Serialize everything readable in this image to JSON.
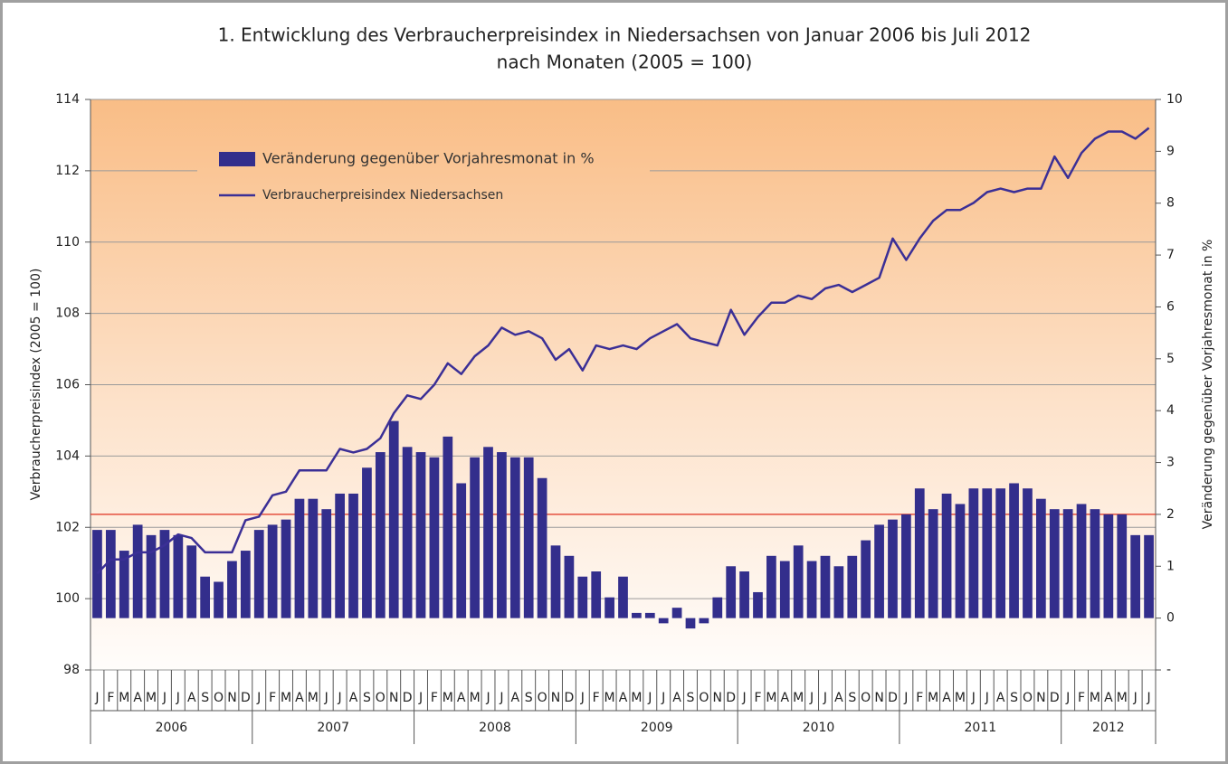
{
  "chart_data": {
    "type": "bar_line",
    "title": "1. Entwicklung des Verbraucherpreisindex in Niedersachsen von Januar 2006 bis Juli 2012",
    "subtitle": "nach Monaten (2005 = 100)",
    "y_label": "Verbraucherpreisindex (2005 = 100)",
    "y2_label": "Veränderung gegenüber Vorjahresmonat in %",
    "categories": [
      "J",
      "F",
      "M",
      "A",
      "M",
      "J",
      "J",
      "A",
      "S",
      "O",
      "N",
      "D",
      "J",
      "F",
      "M",
      "A",
      "M",
      "J",
      "J",
      "A",
      "S",
      "O",
      "N",
      "D",
      "J",
      "F",
      "M",
      "A",
      "M",
      "J",
      "J",
      "A",
      "S",
      "O",
      "N",
      "D",
      "J",
      "F",
      "M",
      "A",
      "M",
      "J",
      "J",
      "A",
      "S",
      "O",
      "N",
      "D",
      "J",
      "F",
      "M",
      "A",
      "M",
      "J",
      "J",
      "A",
      "S",
      "O",
      "N",
      "D",
      "J",
      "F",
      "M",
      "A",
      "M",
      "J",
      "J",
      "A",
      "S",
      "O",
      "N",
      "D",
      "J",
      "F",
      "M",
      "A",
      "M",
      "J",
      "J"
    ],
    "years": [
      "2006",
      "2007",
      "2008",
      "2009",
      "2010",
      "2011",
      "2012"
    ],
    "series": [
      {
        "name": "Veränderung gegenüber Vorjahresmonat in %",
        "type": "bar",
        "axis": "y2",
        "color": "#332e8c",
        "values": [
          1.7,
          1.7,
          1.3,
          1.8,
          1.6,
          1.7,
          1.6,
          1.4,
          0.8,
          0.7,
          1.1,
          1.3,
          1.7,
          1.8,
          1.9,
          2.3,
          2.3,
          2.1,
          2.4,
          2.4,
          2.9,
          3.2,
          3.8,
          3.3,
          3.2,
          3.1,
          3.5,
          2.6,
          3.1,
          3.3,
          3.2,
          3.1,
          3.1,
          2.7,
          1.4,
          1.2,
          0.8,
          0.9,
          0.4,
          0.8,
          0.1,
          0.1,
          -0.1,
          0.2,
          -0.2,
          -0.1,
          0.4,
          1.0,
          0.9,
          0.5,
          1.2,
          1.1,
          1.4,
          1.1,
          1.2,
          1.0,
          1.2,
          1.5,
          1.8,
          1.9,
          2.0,
          2.5,
          2.1,
          2.4,
          2.2,
          2.5,
          2.5,
          2.5,
          2.6,
          2.5,
          2.3,
          2.1,
          2.1,
          2.2,
          2.1,
          2.0,
          2.0,
          1.6,
          1.6
        ]
      },
      {
        "name": "Verbraucherpreisindex Niedersachsen",
        "type": "line",
        "axis": "y",
        "color": "#3b2f96",
        "values": [
          100.7,
          101.1,
          101.1,
          101.3,
          101.3,
          101.5,
          101.8,
          101.7,
          101.3,
          101.3,
          101.3,
          102.2,
          102.3,
          102.9,
          103.0,
          103.6,
          103.6,
          103.6,
          104.2,
          104.1,
          104.2,
          104.5,
          105.2,
          105.7,
          105.6,
          106.0,
          106.6,
          106.3,
          106.8,
          107.1,
          107.6,
          107.4,
          107.5,
          107.3,
          106.7,
          107.0,
          106.4,
          107.1,
          107.0,
          107.1,
          107.0,
          107.3,
          107.5,
          107.7,
          107.3,
          107.2,
          107.1,
          108.1,
          107.4,
          107.9,
          108.3,
          108.3,
          108.5,
          108.4,
          108.7,
          108.8,
          108.6,
          108.8,
          109.0,
          110.1,
          109.5,
          110.1,
          110.6,
          110.9,
          110.9,
          111.1,
          111.4,
          111.5,
          111.4,
          111.5,
          111.5,
          112.4,
          111.8,
          112.5,
          112.9,
          113.1,
          113.1,
          112.9,
          113.2
        ]
      }
    ],
    "ylim": [
      98,
      114
    ],
    "yticks": [
      98,
      100,
      102,
      104,
      106,
      108,
      110,
      112,
      114
    ],
    "y2lim": [
      -1,
      10
    ],
    "y2ticks": [
      {
        "value": -1,
        "label": "-"
      },
      0,
      1,
      2,
      3,
      4,
      5,
      6,
      7,
      8,
      9,
      10
    ],
    "grid": true,
    "reference_line": {
      "value": 2,
      "axis": "y2",
      "color": "#e0301e"
    }
  }
}
